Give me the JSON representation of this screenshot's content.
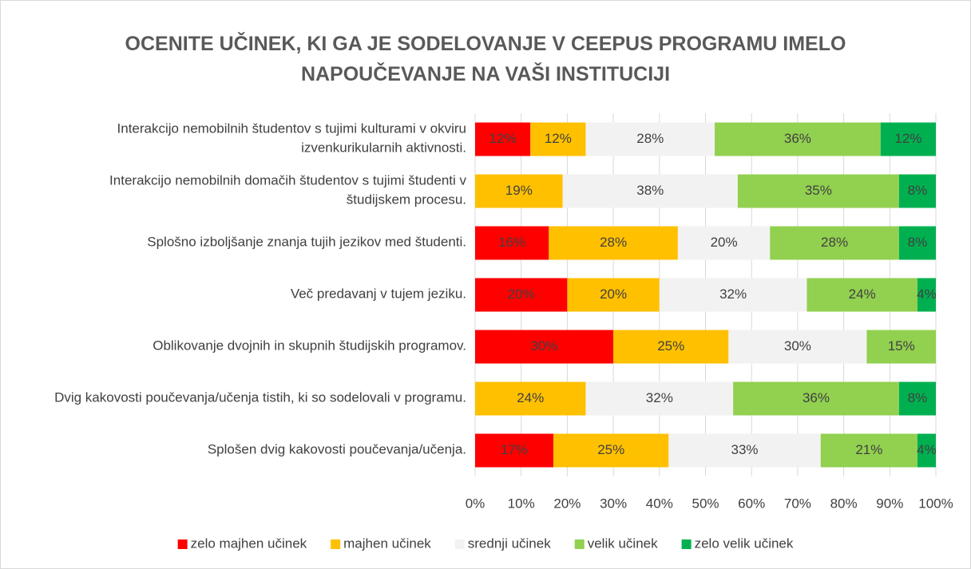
{
  "chart_data": {
    "type": "stacked_bar_horizontal",
    "title": "OCENITE UČINEK, KI GA JE SODELOVANJE V CEEPUS PROGRAMU IMELO NA POUČEVANJE NA VAŠI INSTITUCIJI",
    "categories": [
      "Interakcijo nemobilnih študentov s tujimi kulturami v okviru izvenkurikularnih aktivnosti.",
      "Interakcijo nemobilnih domačih študentov s tujimi študenti v študijskem procesu.",
      "Splošno izboljšanje znanja tujih jezikov med študenti.",
      "Več predavanj v tujem jeziku.",
      "Oblikovanje dvojnih in skupnih študijskih programov.",
      "Dvig kakovosti poučevanja/učenja tistih, ki so sodelovali v programu.",
      "Splošen dvig kakovosti poučevanja/učenja."
    ],
    "series": [
      {
        "name": "zelo majhen učinek",
        "color": "#ff0000",
        "values": [
          12,
          0,
          16,
          20,
          30,
          0,
          17
        ],
        "value_labels": [
          "12%",
          null,
          "16%",
          "20%",
          "30%",
          null,
          "17%"
        ]
      },
      {
        "name": "majhen učinek",
        "color": "#ffc000",
        "values": [
          12,
          19,
          28,
          20,
          25,
          24,
          25
        ],
        "value_labels": [
          "12%",
          "19%",
          "28%",
          "20%",
          "25%",
          "24%",
          "25%"
        ]
      },
      {
        "name": "srednji učinek",
        "color": "#f2f2f2",
        "values": [
          28,
          38,
          20,
          32,
          30,
          32,
          33
        ],
        "value_labels": [
          "28%",
          "38%",
          "20%",
          "32%",
          "30%",
          "32%",
          "33%"
        ]
      },
      {
        "name": "velik učinek",
        "color": "#92d050",
        "values": [
          36,
          35,
          28,
          24,
          15,
          36,
          21
        ],
        "value_labels": [
          "36%",
          "35%",
          "28%",
          "24%",
          "15%",
          "36%",
          "21%"
        ]
      },
      {
        "name": "zelo velik učinek",
        "color": "#00b050",
        "values": [
          12,
          8,
          8,
          4,
          0,
          8,
          4
        ],
        "value_labels": [
          "12%",
          "8%",
          "8%",
          "4%",
          null,
          "8%",
          "4%"
        ]
      }
    ],
    "xlim": [
      0,
      100
    ],
    "xticks": [
      {
        "value": 0,
        "label": "0%"
      },
      {
        "value": 10,
        "label": "10%"
      },
      {
        "value": 20,
        "label": "20%"
      },
      {
        "value": 30,
        "label": "30%"
      },
      {
        "value": 40,
        "label": "40%"
      },
      {
        "value": 50,
        "label": "50%"
      },
      {
        "value": 60,
        "label": "60%"
      },
      {
        "value": 70,
        "label": "70%"
      },
      {
        "value": 80,
        "label": "80%"
      },
      {
        "value": 90,
        "label": "90%"
      },
      {
        "value": 100,
        "label": "100%"
      }
    ],
    "grid": true,
    "legend": "bottom"
  }
}
